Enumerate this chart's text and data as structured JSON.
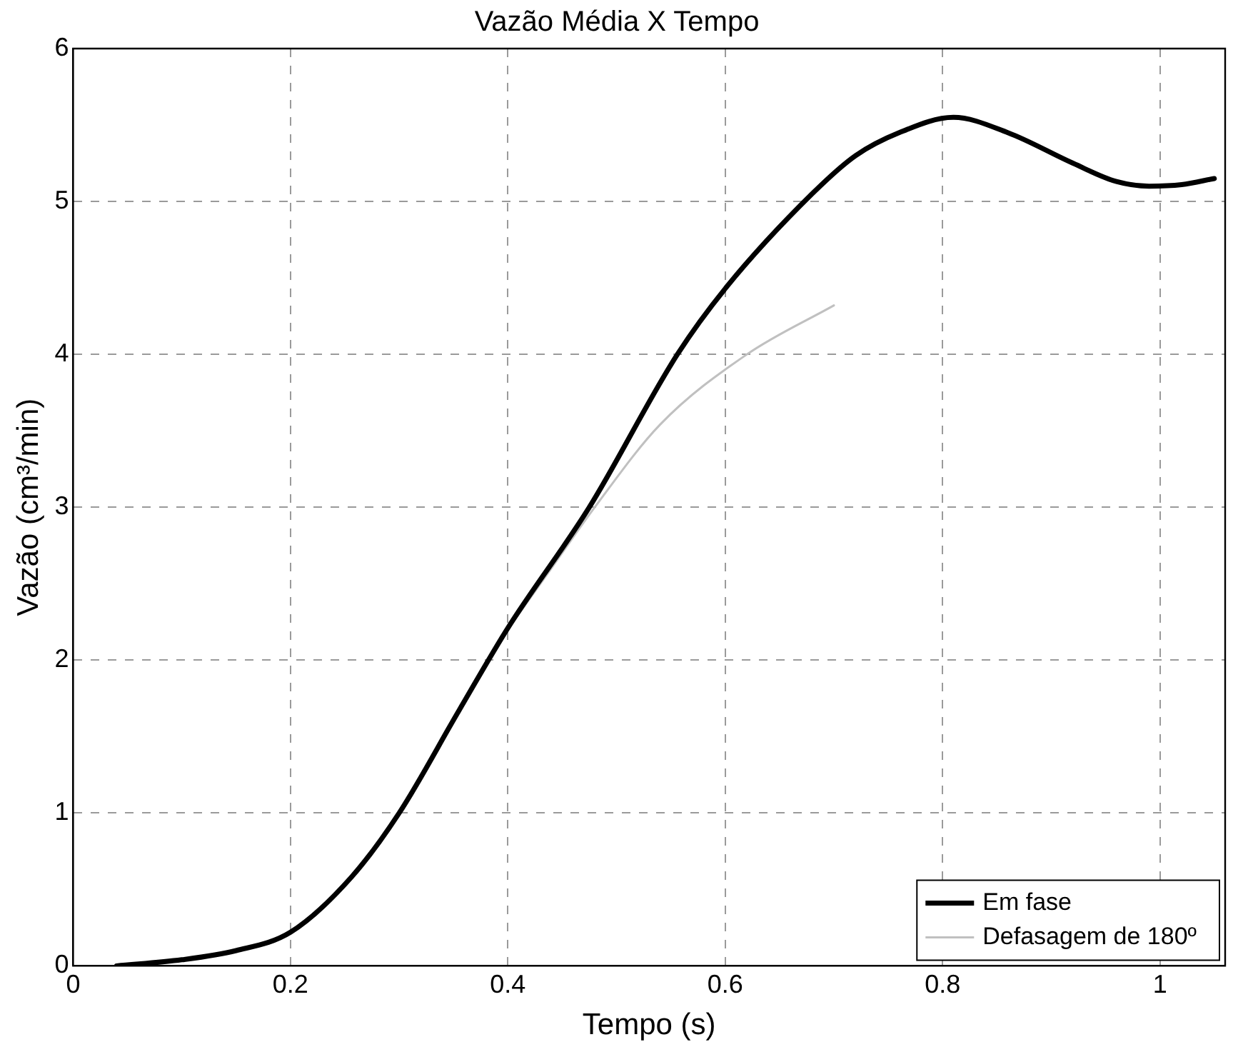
{
  "chart_data": {
    "type": "line",
    "title": "Vazão Média X Tempo",
    "xlabel": "Tempo (s)",
    "ylabel": "Vazão (cm³/min)",
    "xlim": [
      0,
      1.06
    ],
    "xticks": [
      0,
      0.2,
      0.4,
      0.6,
      0.8,
      1
    ],
    "ylim": [
      0,
      6
    ],
    "yticks": [
      0,
      1,
      2,
      3,
      4,
      5,
      6
    ],
    "grid": true,
    "legend": "bottom right",
    "marker": "none",
    "line_style": "solid",
    "series": [
      {
        "name": "Em fase",
        "color": "#000000",
        "x": [
          0.04,
          0.1,
          0.15,
          0.2,
          0.256,
          0.3,
          0.355,
          0.4,
          0.475,
          0.556,
          0.6,
          0.68,
          0.72,
          0.76,
          0.81,
          0.86,
          0.92,
          0.96,
          0.99,
          1.02,
          1.05
        ],
        "values": [
          0,
          0.04,
          0.1,
          0.22,
          0.58,
          1.0,
          1.67,
          2.21,
          3.0,
          4.0,
          4.43,
          5.05,
          5.3,
          5.45,
          5.55,
          5.45,
          5.25,
          5.13,
          5.1,
          5.11,
          5.15
        ]
      },
      {
        "name": "Defasagem de 180º",
        "color": "#c0c0c0",
        "x": [
          0.4,
          0.44,
          0.48,
          0.54,
          0.62,
          0.7
        ],
        "values": [
          2.2,
          2.6,
          3.0,
          3.54,
          4.0,
          4.32
        ]
      }
    ]
  }
}
